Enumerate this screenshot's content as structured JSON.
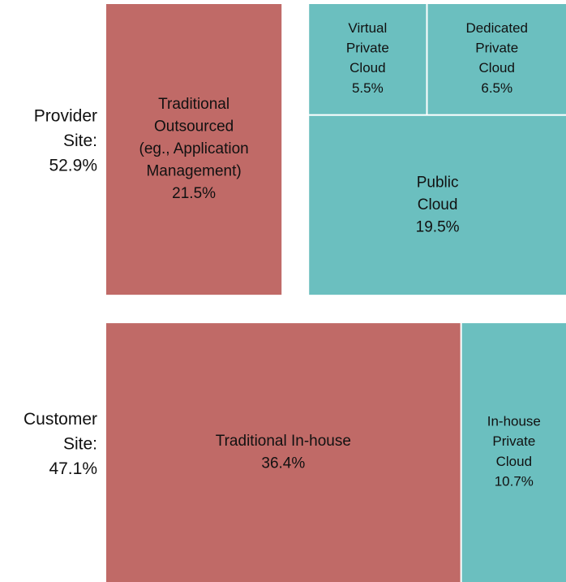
{
  "chart_data": {
    "type": "treemap",
    "groups": [
      {
        "name": [
          "Provider",
          "Site:"
        ],
        "value": 52.9,
        "value_label": "52.9%",
        "items": [
          {
            "name": [
              "Traditional",
              "Outsourced",
              "(eg., Application",
              "Management)"
            ],
            "value": 21.5,
            "value_label": "21.5%",
            "color": "#c06a67"
          },
          {
            "children": [
              {
                "children": [
                  {
                    "name": [
                      "Virtual",
                      "Private",
                      "Cloud"
                    ],
                    "value": 5.5,
                    "value_label": "5.5%",
                    "color": "#6bbfbf"
                  },
                  {
                    "name": [
                      "Dedicated",
                      "Private",
                      "Cloud"
                    ],
                    "value": 6.5,
                    "value_label": "6.5%",
                    "color": "#6bbfbf"
                  }
                ]
              },
              {
                "name": [
                  "Public",
                  "Cloud"
                ],
                "value": 19.5,
                "value_label": "19.5%",
                "color": "#6bbfbf"
              }
            ]
          }
        ]
      },
      {
        "name": [
          "Customer",
          "Site:"
        ],
        "value": 47.1,
        "value_label": "47.1%",
        "items": [
          {
            "name": [
              "Traditional In-house"
            ],
            "value": 36.4,
            "value_label": "36.4%",
            "color": "#c06a67"
          },
          {
            "name": [
              "In-house",
              "Private",
              "Cloud"
            ],
            "value": 10.7,
            "value_label": "10.7%",
            "color": "#6bbfbf"
          }
        ]
      }
    ]
  }
}
